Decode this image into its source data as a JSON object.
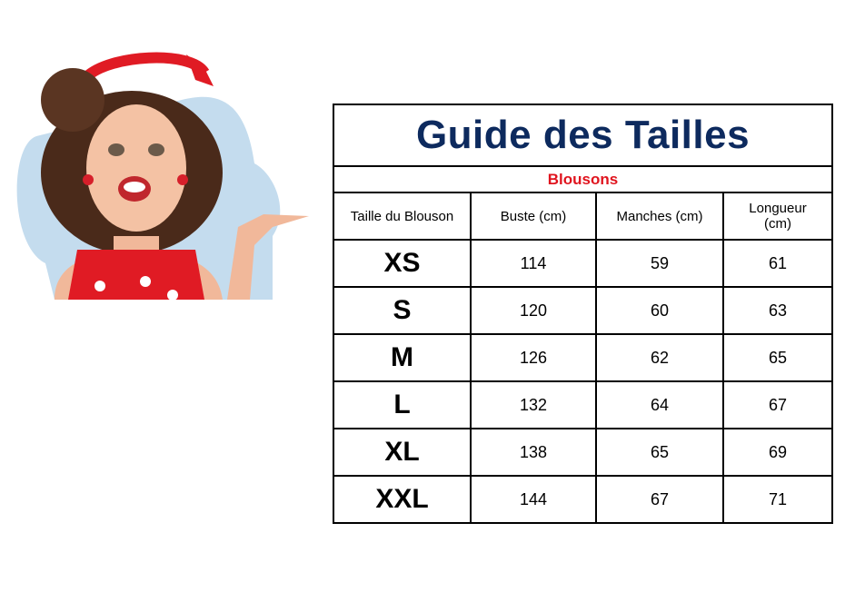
{
  "title": "Guide des Tailles",
  "subtitle": "Blousons",
  "headers": [
    "Taille du Blouson",
    "Buste (cm)",
    "Manches (cm)",
    "Longueur (cm)"
  ],
  "rows": [
    {
      "size": "XS",
      "buste": "114",
      "manches": "59",
      "longueur": "61"
    },
    {
      "size": "S",
      "buste": "120",
      "manches": "60",
      "longueur": "63"
    },
    {
      "size": "M",
      "buste": "126",
      "manches": "62",
      "longueur": "65"
    },
    {
      "size": "L",
      "buste": "132",
      "manches": "64",
      "longueur": "67"
    },
    {
      "size": "XL",
      "buste": "138",
      "manches": "65",
      "longueur": "69"
    },
    {
      "size": "XXL",
      "buste": "144",
      "manches": "67",
      "longueur": "71"
    }
  ],
  "colors": {
    "title": "#0d2a5e",
    "subtitle": "#e0141e"
  }
}
